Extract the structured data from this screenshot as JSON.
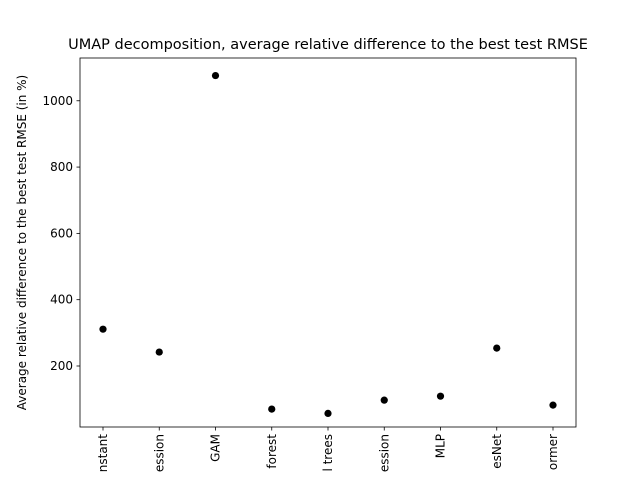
{
  "chart_data": {
    "type": "scatter",
    "title": "UMAP decomposition, average relative difference to the best test RMSE",
    "xlabel": "",
    "ylabel": "Average relative difference to the best test RMSE (in %)",
    "categories": [
      "Constant",
      "Linear regression",
      "GAM",
      "Random forest",
      "Boosted trees",
      "Gaussian process regression",
      "MLP",
      "ResNet",
      "FT-Transformer"
    ],
    "visible_category_labels": [
      "nstant",
      "ession",
      "GAM",
      "forest",
      "l trees",
      "ession",
      "MLP",
      "esNet",
      "ormer"
    ],
    "values": [
      311,
      242,
      1076,
      70,
      57,
      97,
      109,
      254,
      82
    ],
    "ylim": [
      16,
      1129
    ],
    "yticks": [
      200,
      400,
      600,
      800,
      1000
    ],
    "yticks_labels": [
      "200",
      "400",
      "600",
      "800",
      "1000"
    ],
    "grid": false,
    "legend": "none",
    "marker_color": "#000000"
  }
}
